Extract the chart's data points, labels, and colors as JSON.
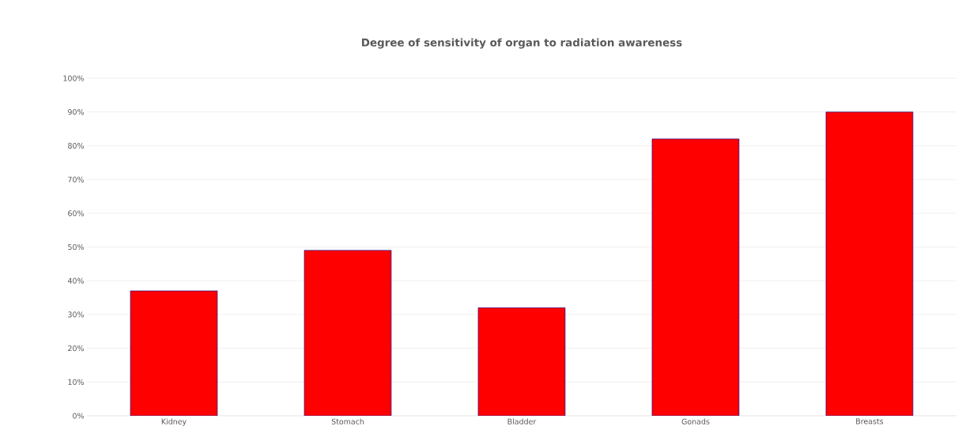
{
  "chart_data": {
    "type": "bar",
    "title": "Degree of sensitivity of organ to radiation awareness",
    "categories": [
      "Kidney",
      "Stomach",
      "Bladder",
      "Gonads",
      "Breasts"
    ],
    "values": [
      37,
      49,
      32,
      82,
      90
    ],
    "color": "#ff0000",
    "ylim": [
      0,
      100
    ],
    "yticks": [
      {
        "value": 0,
        "label": "0%"
      },
      {
        "value": 10,
        "label": "10%"
      },
      {
        "value": 20,
        "label": "20%"
      },
      {
        "value": 30,
        "label": "30%"
      },
      {
        "value": 40,
        "label": "40%"
      },
      {
        "value": 50,
        "label": "50%"
      },
      {
        "value": 60,
        "label": "60%"
      },
      {
        "value": 70,
        "label": "70%"
      },
      {
        "value": 80,
        "label": "80%"
      },
      {
        "value": 90,
        "label": "90%"
      },
      {
        "value": 100,
        "label": "100%"
      }
    ],
    "grid": "y"
  }
}
